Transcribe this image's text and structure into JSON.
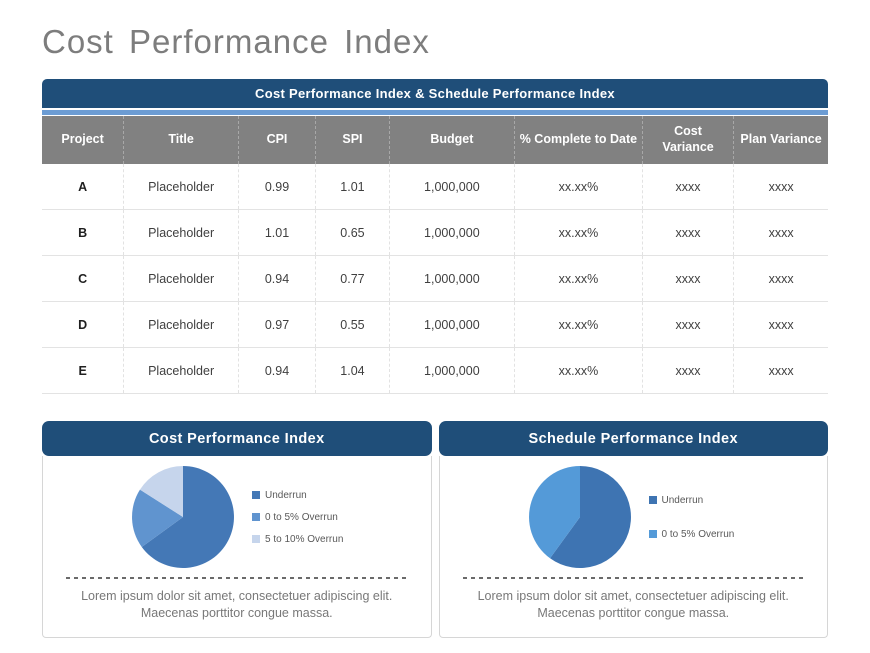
{
  "slide": {
    "title": "Cost Performance Index"
  },
  "table": {
    "title": "Cost Performance Index & Schedule Performance Index",
    "columns": [
      "Project",
      "Title",
      "CPI",
      "SPI",
      "Budget",
      "% Complete to Date",
      "Cost Variance",
      "Plan Variance"
    ],
    "rows": [
      [
        "A",
        "Placeholder",
        "0.99",
        "1.01",
        "1,000,000",
        "xx.xx%",
        "xxxx",
        "xxxx"
      ],
      [
        "B",
        "Placeholder",
        "1.01",
        "0.65",
        "1,000,000",
        "xx.xx%",
        "xxxx",
        "xxxx"
      ],
      [
        "C",
        "Placeholder",
        "0.94",
        "0.77",
        "1,000,000",
        "xx.xx%",
        "xxxx",
        "xxxx"
      ],
      [
        "D",
        "Placeholder",
        "0.97",
        "0.55",
        "1,000,000",
        "xx.xx%",
        "xxxx",
        "xxxx"
      ],
      [
        "E",
        "Placeholder",
        "0.94",
        "1.04",
        "1,000,000",
        "xx.xx%",
        "xxxx",
        "xxxx"
      ]
    ]
  },
  "chart_data": [
    {
      "type": "pie",
      "title": "Cost Performance Index",
      "labels": [
        "Underrun",
        "0 to 5% Overrun",
        "5 to 10% Overrun"
      ],
      "values": [
        65,
        19,
        16
      ],
      "colors": [
        "#4478B6",
        "#6094CF",
        "#C6D5EC"
      ],
      "legend_position": "right",
      "note": "Lorem ipsum dolor sit amet, consectetuer adipiscing elit. Maecenas porttitor congue massa."
    },
    {
      "type": "pie",
      "title": "Schedule Performance Index",
      "labels": [
        "Underrun",
        "0 to 5% Overrun"
      ],
      "values": [
        60,
        40
      ],
      "colors": [
        "#3E74B2",
        "#549AD8"
      ],
      "legend_position": "right",
      "note": "Lorem ipsum dolor sit amet, consectetuer adipiscing elit. Maecenas porttitor congue massa."
    }
  ],
  "colors": {
    "accent_navy": "#1F4E79",
    "strip_blue": "#6C9CD3",
    "header_gray": "#818181"
  }
}
